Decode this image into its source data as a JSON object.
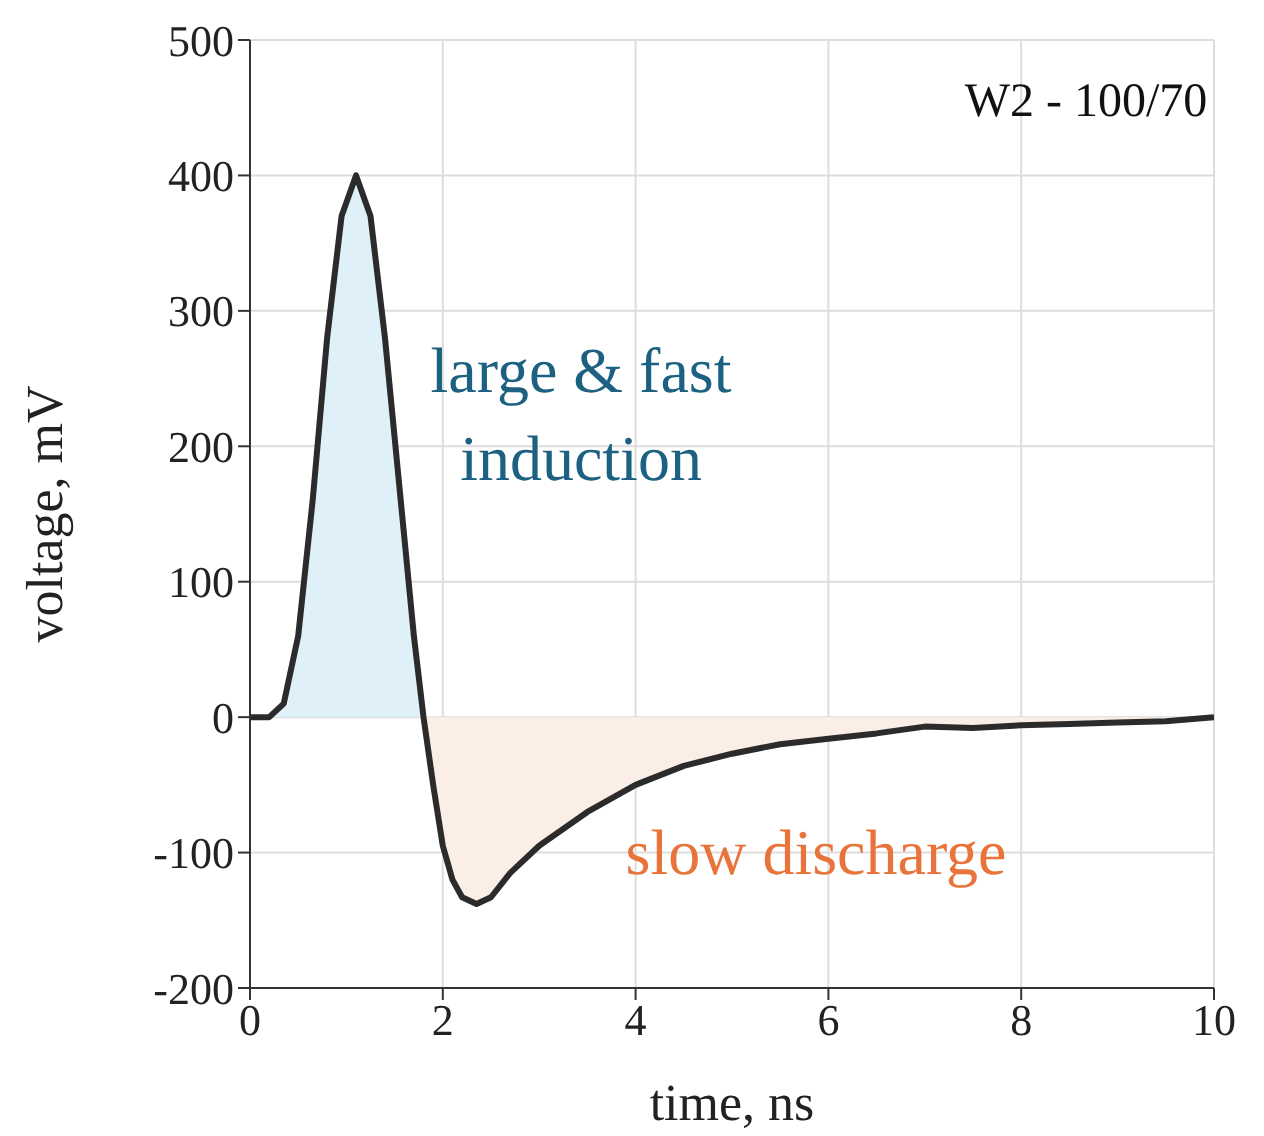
{
  "chart_data": {
    "type": "line",
    "xlabel": "time, ns",
    "ylabel": "voltage, mV",
    "xlim": [
      0,
      10
    ],
    "xticks": [
      0,
      2,
      4,
      6,
      8,
      10
    ],
    "ylim": [
      -200,
      500
    ],
    "yticks": [
      -200,
      -100,
      0,
      100,
      200,
      300,
      400,
      500
    ],
    "grid": true,
    "legend": false,
    "annotations": [
      "W2 - 100/70",
      "large & fast induction",
      "slow discharge"
    ],
    "series": [
      {
        "type": "area",
        "color": "#dff0f8",
        "x": [
          0,
          0.2,
          0.35,
          0.5,
          0.65,
          0.8,
          0.95,
          1.1,
          1.25,
          1.4,
          1.55,
          1.7,
          1.8
        ],
        "values": [
          0,
          0,
          10,
          60,
          160,
          280,
          370,
          400,
          370,
          280,
          170,
          60,
          0
        ]
      },
      {
        "type": "area",
        "color": "#fbeee6",
        "x": [
          1.8,
          1.9,
          2.0,
          2.1,
          2.2,
          2.35,
          2.5,
          2.7,
          3.0,
          3.5,
          4.0,
          4.5,
          5.0,
          5.5,
          6.0,
          6.5,
          7.0,
          7.5,
          8.0,
          8.5,
          9.0,
          9.5,
          10
        ],
        "values": [
          0,
          -50,
          -95,
          -120,
          -133,
          -138,
          -133,
          -115,
          -95,
          -70,
          -50,
          -36,
          -27,
          -20,
          -16,
          -12,
          -7,
          -8,
          -6,
          -5,
          -4,
          -3,
          0
        ]
      },
      {
        "color": "#2b2b2b",
        "x": [
          0,
          0.2,
          0.35,
          0.5,
          0.65,
          0.8,
          0.95,
          1.1,
          1.25,
          1.4,
          1.55,
          1.7,
          1.8,
          1.9,
          2.0,
          2.1,
          2.2,
          2.35,
          2.5,
          2.7,
          3.0,
          3.5,
          4.0,
          4.5,
          5.0,
          5.5,
          6.0,
          6.5,
          7.0,
          7.5,
          8.0,
          8.5,
          9.0,
          9.5,
          10
        ],
        "values": [
          0,
          0,
          10,
          60,
          160,
          280,
          370,
          400,
          370,
          280,
          170,
          60,
          0,
          -50,
          -95,
          -120,
          -133,
          -138,
          -133,
          -115,
          -95,
          -70,
          -50,
          -36,
          -27,
          -20,
          -16,
          -12,
          -7,
          -8,
          -6,
          -5,
          -4,
          -3,
          0
        ]
      }
    ]
  }
}
